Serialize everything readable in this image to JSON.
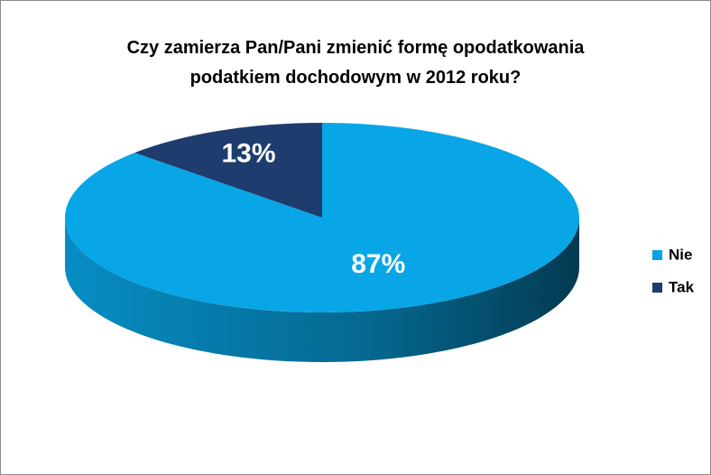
{
  "chart_data": {
    "type": "pie",
    "title": "Czy zamierza Pan/Pani  zmienić formę opodatkowania\npodatkiem dochodowym w 2012 roku?",
    "categories": [
      "Nie",
      "Tak"
    ],
    "values": [
      87,
      13
    ],
    "value_labels": [
      "87%",
      "13%"
    ],
    "colors": [
      "#08a6e6",
      "#1e3c6e"
    ],
    "legend": "right"
  }
}
